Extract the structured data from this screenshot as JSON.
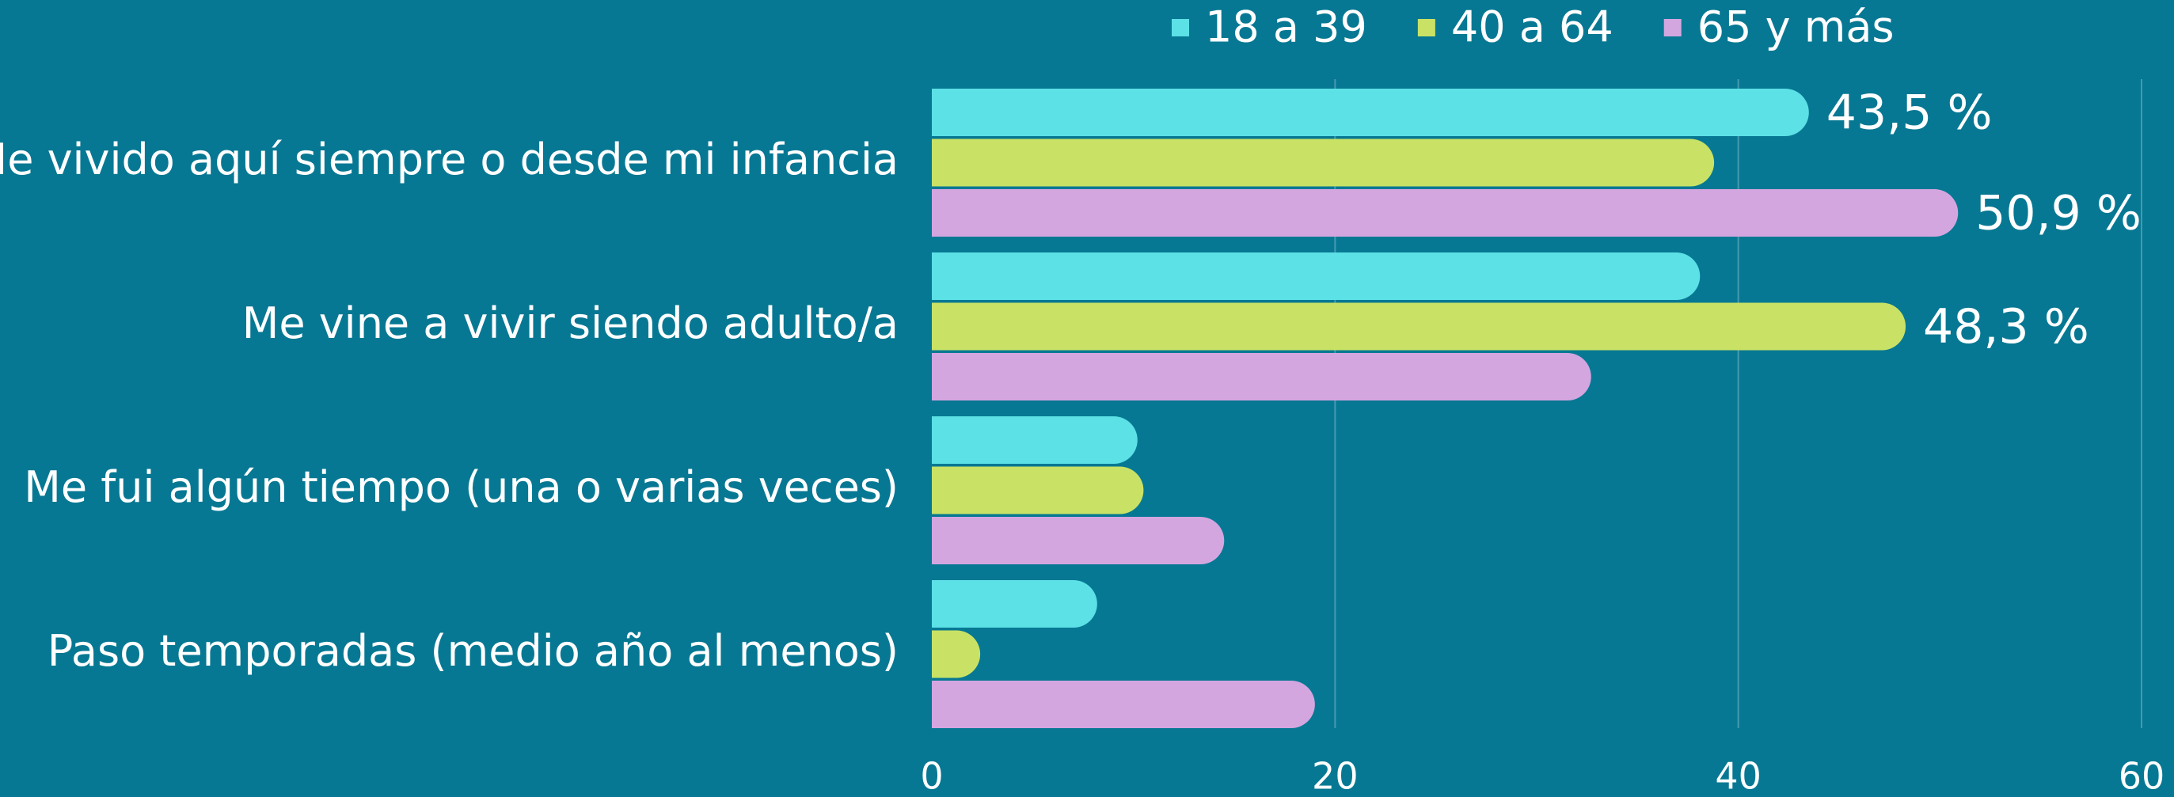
{
  "chart_data": {
    "type": "bar",
    "orientation": "horizontal",
    "categories": [
      "He vivido aquí siempre o desde mi infancia",
      "Me vine a vivir siendo adulto/a",
      "Me fui algún tiempo (una o varias veces)",
      "Paso temporadas (medio año al menos)"
    ],
    "series": [
      {
        "name": "18 a 39",
        "color": "#5ce1e6",
        "values": [
          43.5,
          38.1,
          10.2,
          8.2
        ],
        "value_labels": [
          "43,5 %",
          null,
          null,
          null
        ]
      },
      {
        "name": "40 a 64",
        "color": "#c9e265",
        "values": [
          38.8,
          48.3,
          10.5,
          2.4
        ],
        "value_labels": [
          null,
          "48,3 %",
          null,
          null
        ]
      },
      {
        "name": "65 y más",
        "color": "#d4a6e0",
        "values": [
          50.9,
          32.7,
          14.5,
          19.0
        ],
        "value_labels": [
          "50,9 %",
          null,
          null,
          null
        ]
      }
    ],
    "xlim": [
      0,
      60
    ],
    "xticks": [
      0,
      20,
      40,
      60
    ],
    "grid": true,
    "legend": "top"
  }
}
